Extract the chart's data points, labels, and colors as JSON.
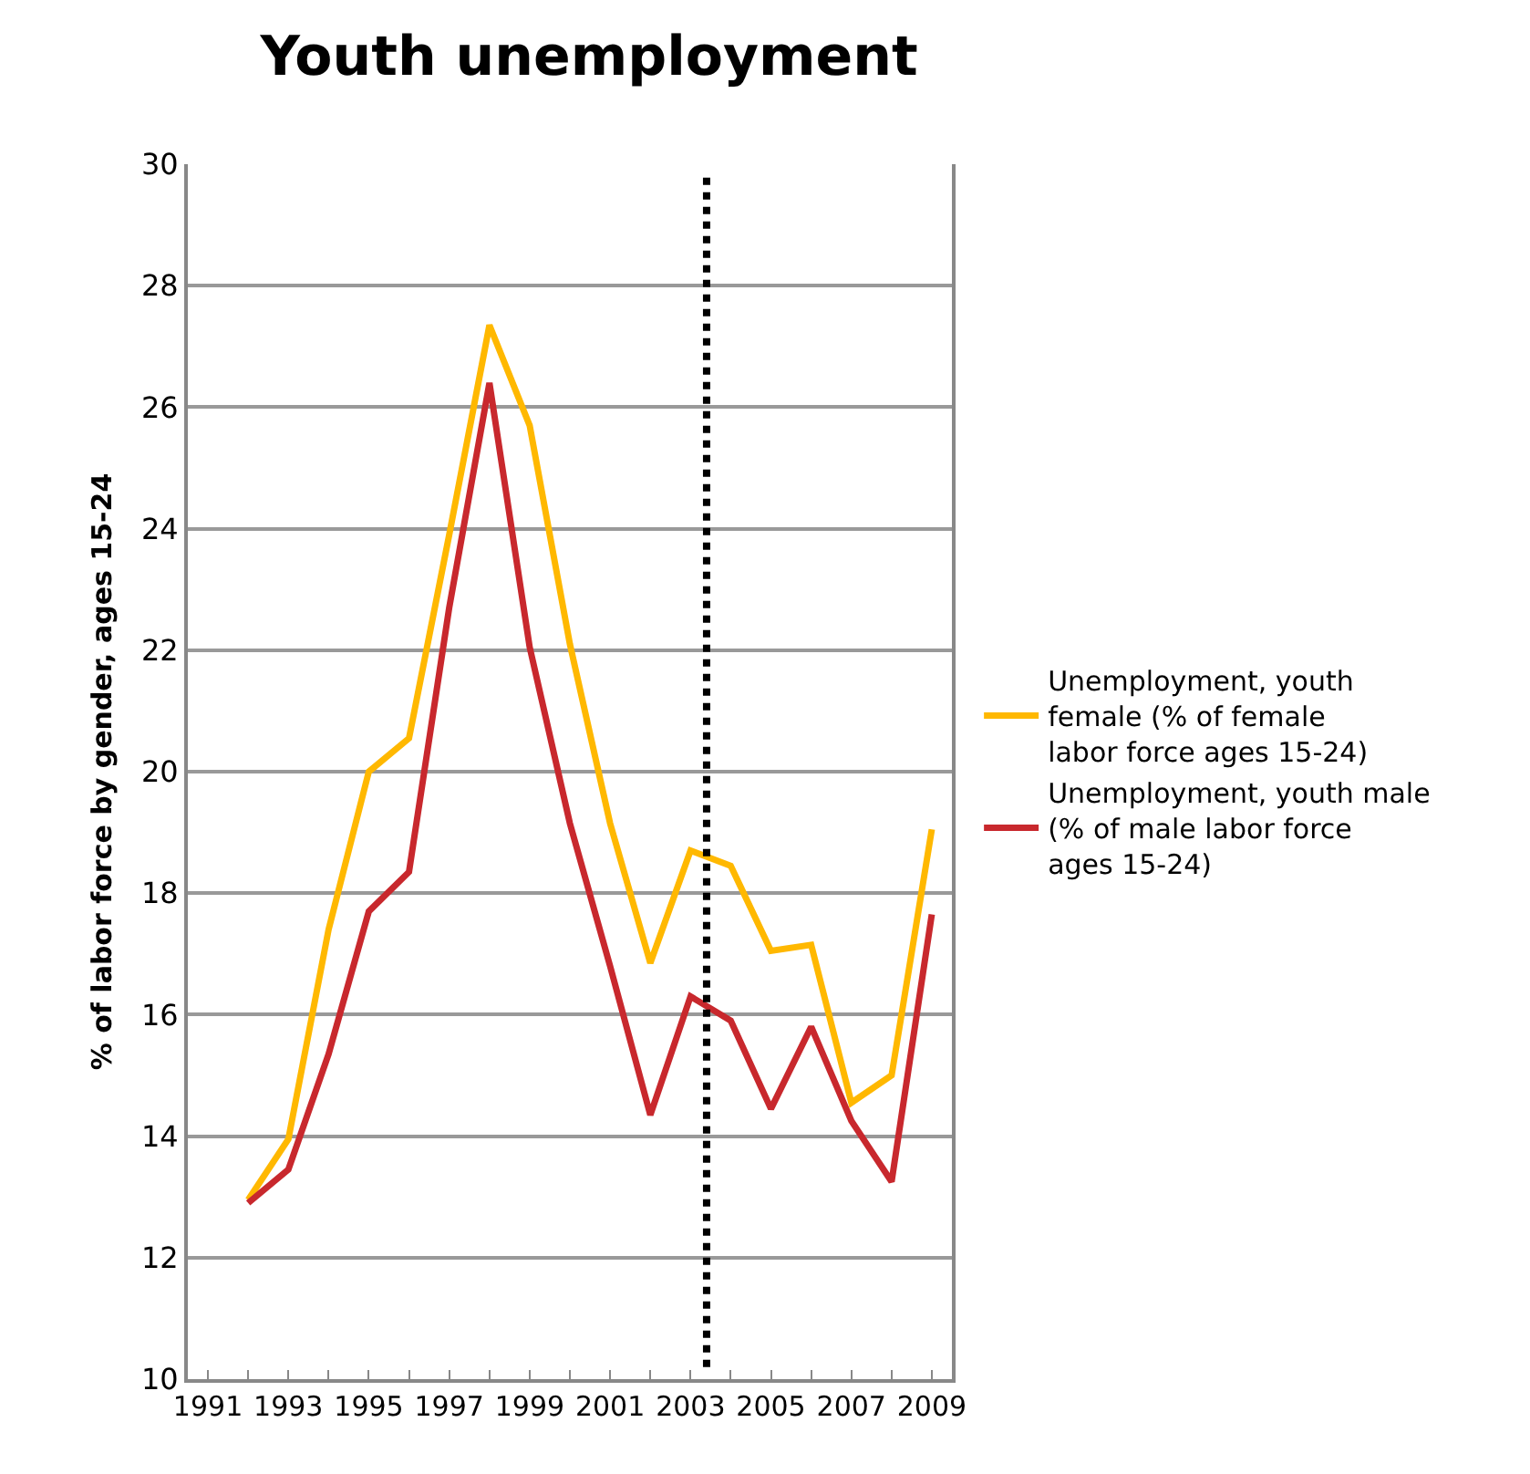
{
  "chart_data": {
    "type": "line",
    "title": "Youth unemployment",
    "ylabel": "% of labor force by gender, ages 15-24",
    "x": [
      1992,
      1993,
      1994,
      1995,
      1996,
      1997,
      1998,
      1999,
      2000,
      2001,
      2002,
      2003,
      2004,
      2005,
      2006,
      2007,
      2008,
      2009
    ],
    "series": [
      {
        "name": "Unemployment, youth female (% of female labor force ages 15-24)",
        "color": "#ffb800",
        "values": [
          12.95,
          13.95,
          17.4,
          20.0,
          20.55,
          23.9,
          27.35,
          25.7,
          22.1,
          19.15,
          16.85,
          18.7,
          18.45,
          17.05,
          17.15,
          14.55,
          15.0,
          19.05
        ]
      },
      {
        "name": "Unemployment, youth male (% of male labor force ages 15-24)",
        "color": "#c8282d",
        "values": [
          12.9,
          13.45,
          15.35,
          17.7,
          18.35,
          22.7,
          26.4,
          22.05,
          19.15,
          16.8,
          14.35,
          16.3,
          15.9,
          14.45,
          15.8,
          14.25,
          13.25,
          17.65
        ]
      }
    ],
    "xlim": [
      1990.5,
      2009.5
    ],
    "xticks": [
      1991,
      {
        "value": 1992,
        "label": null
      },
      1993,
      {
        "value": 1994,
        "label": null
      },
      1995,
      {
        "value": 1996,
        "label": null
      },
      1997,
      {
        "value": 1998,
        "label": null
      },
      1999,
      {
        "value": 2000,
        "label": null
      },
      2001,
      {
        "value": 2002,
        "label": null
      },
      2003,
      {
        "value": 2004,
        "label": null
      },
      2005,
      {
        "value": 2006,
        "label": null
      },
      2007,
      {
        "value": 2008,
        "label": null
      },
      2009
    ],
    "ylim": [
      10,
      30
    ],
    "yticks": [
      10,
      12,
      14,
      16,
      18,
      20,
      22,
      24,
      26,
      28,
      30
    ],
    "ref_lines": [
      {
        "axis": "x",
        "value": 2003.4,
        "color": "#000000",
        "line_style": "dotted"
      }
    ],
    "grid": "y",
    "legend": "right",
    "marker": "none",
    "line_style": "solid"
  }
}
